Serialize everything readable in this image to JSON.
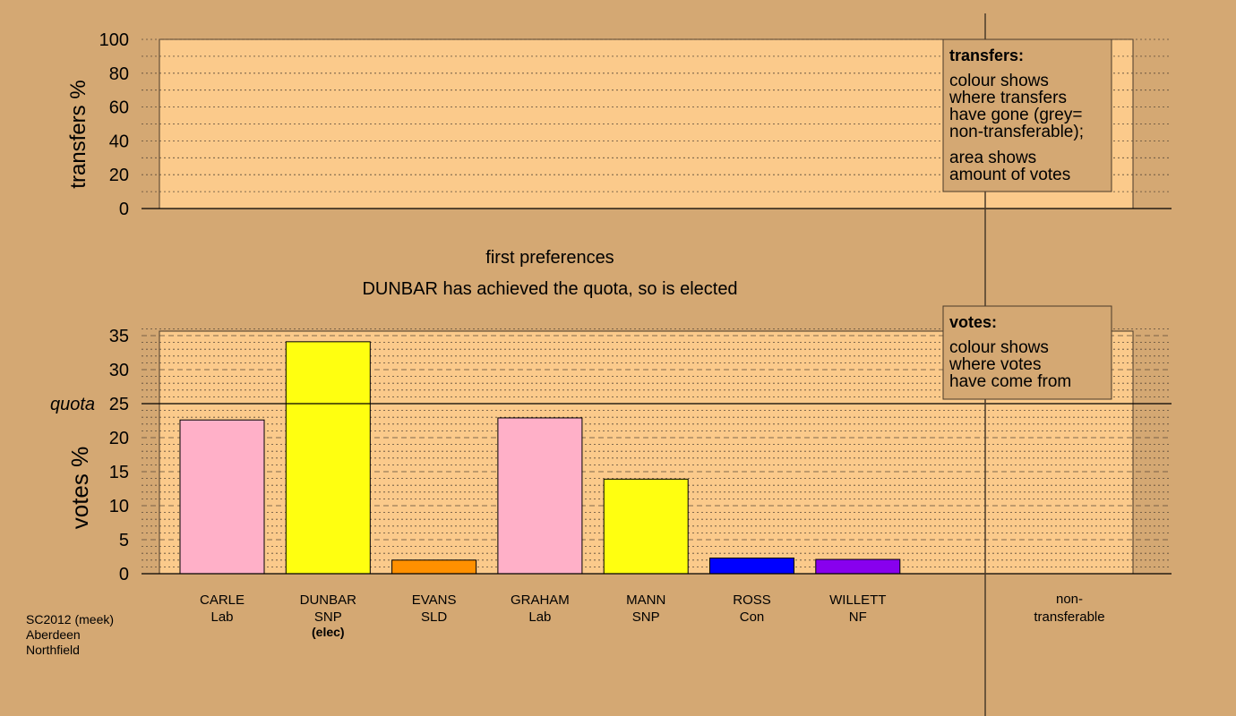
{
  "colors": {
    "background": "#d4a873",
    "panel": "#fbca8b",
    "axis": "#000000",
    "separator": "#4a3a2a"
  },
  "source": [
    "SC2012 (meek)",
    "Aberdeen",
    "Northfield"
  ],
  "stage": {
    "line1": "first preferences",
    "line2": "DUNBAR has achieved the quota, so is elected"
  },
  "transfers_legend": {
    "title": "transfers:",
    "paragraph1": [
      "colour shows",
      "where transfers",
      "have gone (grey=",
      "non-transferable);"
    ],
    "paragraph2": [
      "area shows",
      "amount of votes"
    ]
  },
  "votes_legend": {
    "title": "votes:",
    "paragraph1": [
      "colour shows",
      "where votes",
      "have come from"
    ]
  },
  "chart_data": [
    {
      "type": "bar",
      "ylabel": "transfers %",
      "ylim": [
        0,
        100
      ],
      "yticks": [
        0,
        20,
        40,
        60,
        80,
        100
      ],
      "categories": [],
      "values": []
    },
    {
      "type": "bar",
      "ylabel": "votes %",
      "ylim": [
        0,
        36
      ],
      "yticks": [
        0,
        5,
        10,
        15,
        20,
        25,
        30,
        35
      ],
      "quota": 25,
      "quota_label": "quota",
      "candidates": [
        {
          "name": "CARLE",
          "party": "Lab",
          "value": 22.6,
          "color": "#ffb0c8",
          "note": ""
        },
        {
          "name": "DUNBAR",
          "party": "SNP",
          "value": 34.1,
          "color": "#ffff10",
          "note": "(elec)"
        },
        {
          "name": "EVANS",
          "party": "SLD",
          "value": 2.0,
          "color": "#ff9000",
          "note": ""
        },
        {
          "name": "GRAHAM",
          "party": "Lab",
          "value": 22.9,
          "color": "#ffb0c8",
          "note": ""
        },
        {
          "name": "MANN",
          "party": "SNP",
          "value": 13.9,
          "color": "#ffff10",
          "note": ""
        },
        {
          "name": "ROSS",
          "party": "Con",
          "value": 2.3,
          "color": "#0000ff",
          "note": ""
        },
        {
          "name": "WILLETT",
          "party": "NF",
          "value": 2.1,
          "color": "#8800ee",
          "note": ""
        }
      ],
      "nontransferable": {
        "label_line1": "non-",
        "label_line2": "transferable",
        "value": 0
      }
    }
  ]
}
